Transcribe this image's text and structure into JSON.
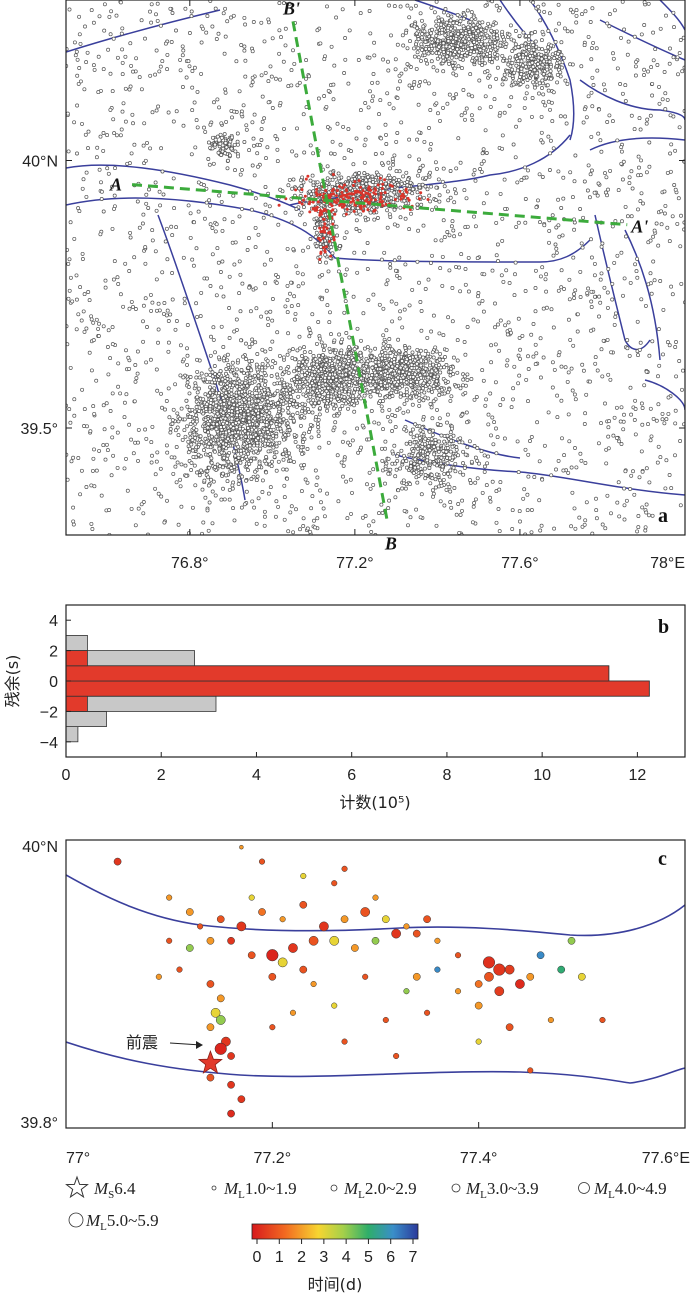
{
  "panel_a": {
    "letter": "a",
    "lon_ticks": [
      {
        "value": 76.8,
        "label": "76.8°"
      },
      {
        "value": 77.2,
        "label": "77.2°"
      },
      {
        "value": 77.6,
        "label": "77.6°"
      },
      {
        "value": 78.0,
        "label": "78°E"
      }
    ],
    "lat_ticks": [
      {
        "value": 40.0,
        "label": "40°N"
      },
      {
        "value": 39.5,
        "label": "39.5°"
      }
    ],
    "profiles": {
      "A": {
        "start_label": "A",
        "end_label": "A'",
        "start": [
          76.66,
          39.955
        ],
        "end": [
          77.86,
          39.88
        ]
      },
      "B": {
        "start_label": "B'",
        "end_label": "B",
        "start": [
          77.05,
          40.26
        ],
        "end": [
          77.28,
          39.32
        ]
      }
    },
    "line_color": "#3a3f9c",
    "profile_color": "#3cab3c",
    "event_color": "#555555",
    "highlight_color": "#d9342b"
  },
  "panel_b": {
    "letter": "b",
    "xlabel": "计数(10⁵)",
    "ylabel": "残余(s)",
    "x_ticks": [
      "0",
      "2",
      "4",
      "6",
      "8",
      "10",
      "12"
    ],
    "y_ticks": [
      "4",
      "2",
      "0",
      "−2",
      "−4"
    ]
  },
  "panel_c": {
    "letter": "c",
    "lon_ticks": [
      {
        "value": 77.0,
        "label": "77°"
      },
      {
        "value": 77.2,
        "label": "77.2°"
      },
      {
        "value": 77.4,
        "label": "77.4°"
      },
      {
        "value": 77.6,
        "label": "77.6°E"
      }
    ],
    "lat_ticks": [
      {
        "value": 40.0,
        "label": "40°N"
      },
      {
        "value": 39.8,
        "label": "39.8°"
      }
    ],
    "foreshock_label": "前震",
    "mainshock": {
      "lon": 77.14,
      "lat": 39.845
    }
  },
  "legend": {
    "items": [
      {
        "symbol": "star",
        "mag": "M",
        "sub": "S",
        "range": "6.4"
      },
      {
        "symbol": "circle",
        "mag": "M",
        "sub": "L",
        "range": "1.0~1.9",
        "r": 2
      },
      {
        "symbol": "circle",
        "mag": "M",
        "sub": "L",
        "range": "2.0~2.9",
        "r": 3
      },
      {
        "symbol": "circle",
        "mag": "M",
        "sub": "L",
        "range": "3.0~3.9",
        "r": 4
      },
      {
        "symbol": "circle",
        "mag": "M",
        "sub": "L",
        "range": "4.0~4.9",
        "r": 5.5
      },
      {
        "symbol": "circle",
        "mag": "M",
        "sub": "L",
        "range": "5.0~5.9",
        "r": 7
      }
    ],
    "colorbar_ticks": [
      "0",
      "1",
      "2",
      "3",
      "4",
      "5",
      "6",
      "7"
    ],
    "colorbar_label": "时间(d)"
  },
  "chart_data": [
    {
      "type": "scatter",
      "panel": "a",
      "xlabel": "",
      "ylabel": "",
      "xlim": [
        76.5,
        78.0
      ],
      "ylim": [
        39.3,
        40.3
      ],
      "series": [],
      "clusters": [
        {
          "center": [
            76.92,
            39.52
          ],
          "spread": [
            0.12,
            0.08
          ],
          "count": 1400
        },
        {
          "center": [
            77.13,
            39.59
          ],
          "spread": [
            0.07,
            0.05
          ],
          "count": 500
        },
        {
          "center": [
            77.3,
            39.6
          ],
          "spread": [
            0.12,
            0.04
          ],
          "count": 700
        },
        {
          "center": [
            77.45,
            40.22
          ],
          "spread": [
            0.1,
            0.04
          ],
          "count": 500
        },
        {
          "center": [
            77.63,
            40.18
          ],
          "spread": [
            0.06,
            0.04
          ],
          "count": 300
        },
        {
          "center": [
            77.38,
            39.45
          ],
          "spread": [
            0.08,
            0.05
          ],
          "count": 300
        },
        {
          "center": [
            76.88,
            40.03
          ],
          "spread": [
            0.03,
            0.02
          ],
          "count": 80
        },
        {
          "center": [
            77.22,
            39.94
          ],
          "spread": [
            0.12,
            0.03
          ],
          "count": 600
        },
        {
          "center": [
            77.13,
            39.88
          ],
          "spread": [
            0.02,
            0.06
          ],
          "count": 150
        }
      ],
      "background_count": 2200,
      "highlight": {
        "center": [
          77.2,
          39.93
        ],
        "spread": [
          0.13,
          0.025
        ],
        "count": 180
      }
    },
    {
      "type": "bar",
      "panel": "b",
      "orientation": "horizontal",
      "xlabel": "计数(10⁵)",
      "ylabel": "残余(s)",
      "xlim": [
        0,
        13
      ],
      "ylim": [
        -5,
        5
      ],
      "bins": [
        [
          -5,
          -4
        ],
        [
          -4,
          -3
        ],
        [
          -3,
          -2
        ],
        [
          -2,
          -1
        ],
        [
          -1,
          0
        ],
        [
          0,
          1
        ],
        [
          1,
          2
        ],
        [
          2,
          3
        ],
        [
          3,
          4
        ],
        [
          4,
          5
        ]
      ],
      "series": [
        {
          "color": "#c8c8c8",
          "values": [
            0.0,
            0.25,
            0.85,
            3.15,
            12.25,
            11.4,
            2.7,
            0.45,
            0.0,
            0.0
          ]
        },
        {
          "color": "#e23a2b",
          "values": [
            0.0,
            0.0,
            0.0,
            0.45,
            12.25,
            11.4,
            0.45,
            0.0,
            0.0,
            0.0
          ]
        }
      ]
    },
    {
      "type": "scatter",
      "panel": "c",
      "xlabel": "",
      "ylabel": "",
      "xlim": [
        77.0,
        77.6
      ],
      "ylim": [
        39.8,
        40.0
      ],
      "color_by": "time_days",
      "color_range": [
        0,
        7
      ],
      "events": [
        [
          77.05,
          39.985,
          3,
          0.5
        ],
        [
          77.1,
          39.96,
          2,
          2
        ],
        [
          77.13,
          39.94,
          2,
          1
        ],
        [
          77.15,
          39.945,
          3,
          1
        ],
        [
          77.17,
          39.94,
          4,
          0.5
        ],
        [
          77.19,
          39.95,
          3,
          1.5
        ],
        [
          77.21,
          39.945,
          2,
          2
        ],
        [
          77.23,
          39.955,
          3,
          1
        ],
        [
          77.25,
          39.94,
          4,
          0.5
        ],
        [
          77.27,
          39.945,
          3,
          2
        ],
        [
          77.29,
          39.95,
          4,
          1
        ],
        [
          77.31,
          39.945,
          3,
          3
        ],
        [
          77.33,
          39.94,
          2,
          2
        ],
        [
          77.35,
          39.945,
          3,
          1
        ],
        [
          77.2,
          39.92,
          5,
          0.2
        ],
        [
          77.22,
          39.925,
          4,
          0.5
        ],
        [
          77.24,
          39.93,
          4,
          1
        ],
        [
          77.26,
          39.93,
          4,
          3
        ],
        [
          77.28,
          39.925,
          3,
          2
        ],
        [
          77.3,
          39.93,
          3,
          4
        ],
        [
          77.32,
          39.935,
          4,
          0.5
        ],
        [
          77.34,
          39.935,
          3,
          1
        ],
        [
          77.36,
          39.93,
          2,
          2
        ],
        [
          77.14,
          39.93,
          3,
          2
        ],
        [
          77.16,
          39.93,
          3,
          0.5
        ],
        [
          77.18,
          39.92,
          3,
          1
        ],
        [
          77.21,
          39.915,
          4,
          3
        ],
        [
          77.23,
          39.91,
          3,
          1
        ],
        [
          77.12,
          39.925,
          3,
          4
        ],
        [
          77.1,
          39.93,
          2,
          1
        ],
        [
          77.14,
          39.9,
          3,
          1
        ],
        [
          77.15,
          39.89,
          3,
          2
        ],
        [
          77.145,
          39.88,
          4,
          3
        ],
        [
          77.15,
          39.875,
          4,
          4
        ],
        [
          77.14,
          39.87,
          3,
          2
        ],
        [
          77.155,
          39.86,
          4,
          0.5
        ],
        [
          77.15,
          39.855,
          5,
          0.2
        ],
        [
          77.16,
          39.85,
          3,
          0.5
        ],
        [
          77.14,
          39.835,
          3,
          1
        ],
        [
          77.16,
          39.83,
          3,
          0.5
        ],
        [
          77.17,
          39.82,
          3,
          0.5
        ],
        [
          77.16,
          39.81,
          3,
          0.3
        ],
        [
          77.41,
          39.915,
          5,
          0.4
        ],
        [
          77.42,
          39.91,
          5,
          0.5
        ],
        [
          77.41,
          39.905,
          4,
          1
        ],
        [
          77.43,
          39.91,
          4,
          0.6
        ],
        [
          77.4,
          39.9,
          3,
          1.5
        ],
        [
          77.45,
          39.905,
          3,
          2
        ],
        [
          77.48,
          39.91,
          3,
          5
        ],
        [
          77.5,
          39.905,
          3,
          3
        ],
        [
          77.52,
          39.875,
          2,
          1
        ],
        [
          77.09,
          39.905,
          2,
          2
        ],
        [
          77.18,
          39.96,
          2,
          3
        ],
        [
          77.26,
          39.97,
          2,
          1
        ],
        [
          77.3,
          39.96,
          2,
          2
        ],
        [
          77.36,
          39.91,
          2,
          6
        ],
        [
          77.33,
          39.895,
          2,
          4
        ],
        [
          77.38,
          39.92,
          2,
          1
        ],
        [
          77.27,
          39.98,
          2,
          1
        ],
        [
          77.23,
          39.975,
          2,
          3
        ],
        [
          77.19,
          39.985,
          2,
          1
        ],
        [
          77.17,
          39.995,
          1,
          2
        ],
        [
          77.11,
          39.91,
          2,
          1
        ],
        [
          77.12,
          39.95,
          3,
          2
        ],
        [
          77.2,
          39.905,
          3,
          1
        ],
        [
          77.24,
          39.9,
          2,
          2
        ],
        [
          77.29,
          39.905,
          2,
          1
        ],
        [
          77.34,
          39.905,
          3,
          2
        ],
        [
          77.26,
          39.885,
          2,
          3
        ],
        [
          77.31,
          39.875,
          2,
          1
        ],
        [
          77.38,
          39.895,
          2,
          2
        ],
        [
          77.35,
          39.88,
          2,
          1
        ],
        [
          77.22,
          39.88,
          2,
          2
        ],
        [
          77.27,
          39.86,
          2,
          1
        ],
        [
          77.32,
          39.85,
          2,
          1
        ],
        [
          77.2,
          39.87,
          2,
          1
        ],
        [
          77.47,
          39.875,
          2,
          2
        ],
        [
          77.43,
          39.87,
          3,
          1
        ],
        [
          77.45,
          39.84,
          2,
          1
        ],
        [
          77.4,
          39.86,
          2,
          3
        ],
        [
          77.42,
          39.895,
          4,
          0.6
        ],
        [
          77.44,
          39.9,
          4,
          0.3
        ],
        [
          77.4,
          39.885,
          3,
          2
        ],
        [
          77.46,
          39.92,
          3,
          6
        ],
        [
          77.49,
          39.93,
          3,
          4
        ]
      ]
    }
  ]
}
